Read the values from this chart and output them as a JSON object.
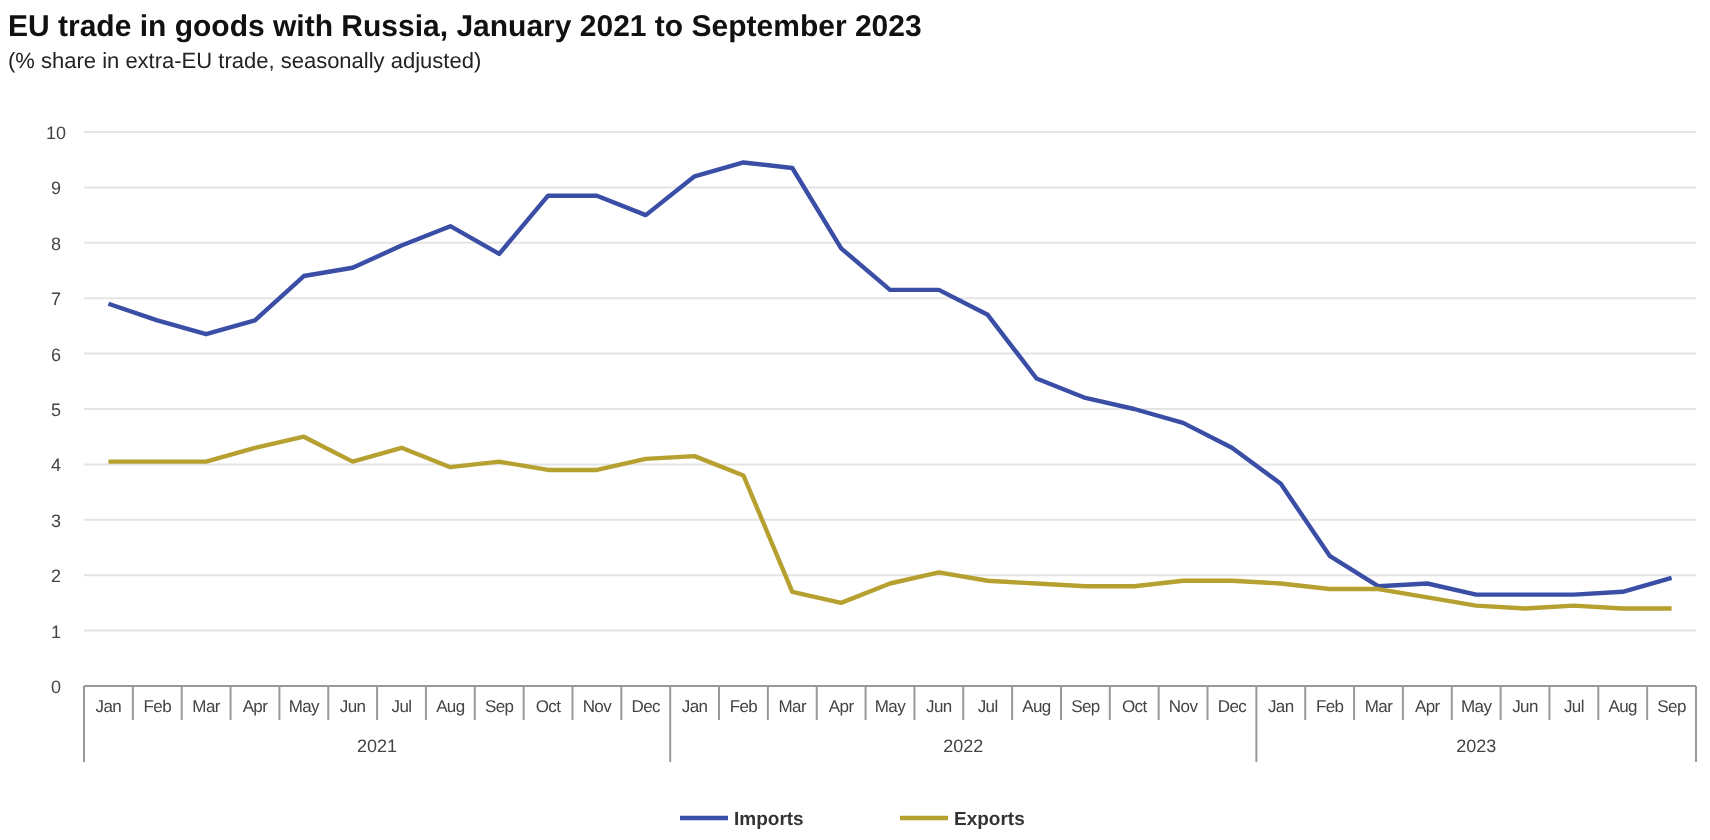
{
  "chart_data": {
    "type": "line",
    "title": "EU trade in goods with Russia, January 2021 to September 2023",
    "subtitle": "(% share in extra-EU trade, seasonally adjusted)",
    "categories": [
      "Jan",
      "Feb",
      "Mar",
      "Apr",
      "May",
      "Jun",
      "Jul",
      "Aug",
      "Sep",
      "Oct",
      "Nov",
      "Dec",
      "Jan",
      "Feb",
      "Mar",
      "Apr",
      "May",
      "Jun",
      "Jul",
      "Aug",
      "Sep",
      "Oct",
      "Nov",
      "Dec",
      "Jan",
      "Feb",
      "Mar",
      "Apr",
      "May",
      "Jun",
      "Jul",
      "Aug",
      "Sep"
    ],
    "annotations": [
      "2021",
      "2022",
      "2023"
    ],
    "series": [
      {
        "name": "Imports",
        "color": "#3a4ea6",
        "values": [
          6.9,
          6.6,
          6.35,
          6.6,
          7.4,
          7.55,
          7.95,
          8.3,
          7.8,
          8.85,
          8.85,
          8.5,
          9.2,
          9.45,
          9.35,
          7.9,
          7.15,
          7.15,
          6.7,
          5.55,
          5.2,
          5.0,
          4.75,
          4.3,
          3.65,
          2.35,
          1.8,
          1.85,
          1.65,
          1.65,
          1.65,
          1.7,
          1.95
        ]
      },
      {
        "name": "Exports",
        "color": "#b5a030",
        "values": [
          4.05,
          4.05,
          4.05,
          4.3,
          4.5,
          4.05,
          4.3,
          3.95,
          4.05,
          3.9,
          3.9,
          4.1,
          4.15,
          3.8,
          1.7,
          1.5,
          1.85,
          2.05,
          1.9,
          1.85,
          1.8,
          1.8,
          1.9,
          1.9,
          1.85,
          1.75,
          1.75,
          1.6,
          1.45,
          1.4,
          1.45,
          1.4,
          1.4
        ]
      }
    ],
    "ylim": [
      0,
      10
    ],
    "yticks": [
      0,
      1,
      2,
      3,
      4,
      5,
      6,
      7,
      8,
      9,
      10
    ],
    "grid": "y",
    "legend": "bottom",
    "marker": "none",
    "line_style": "solid"
  }
}
